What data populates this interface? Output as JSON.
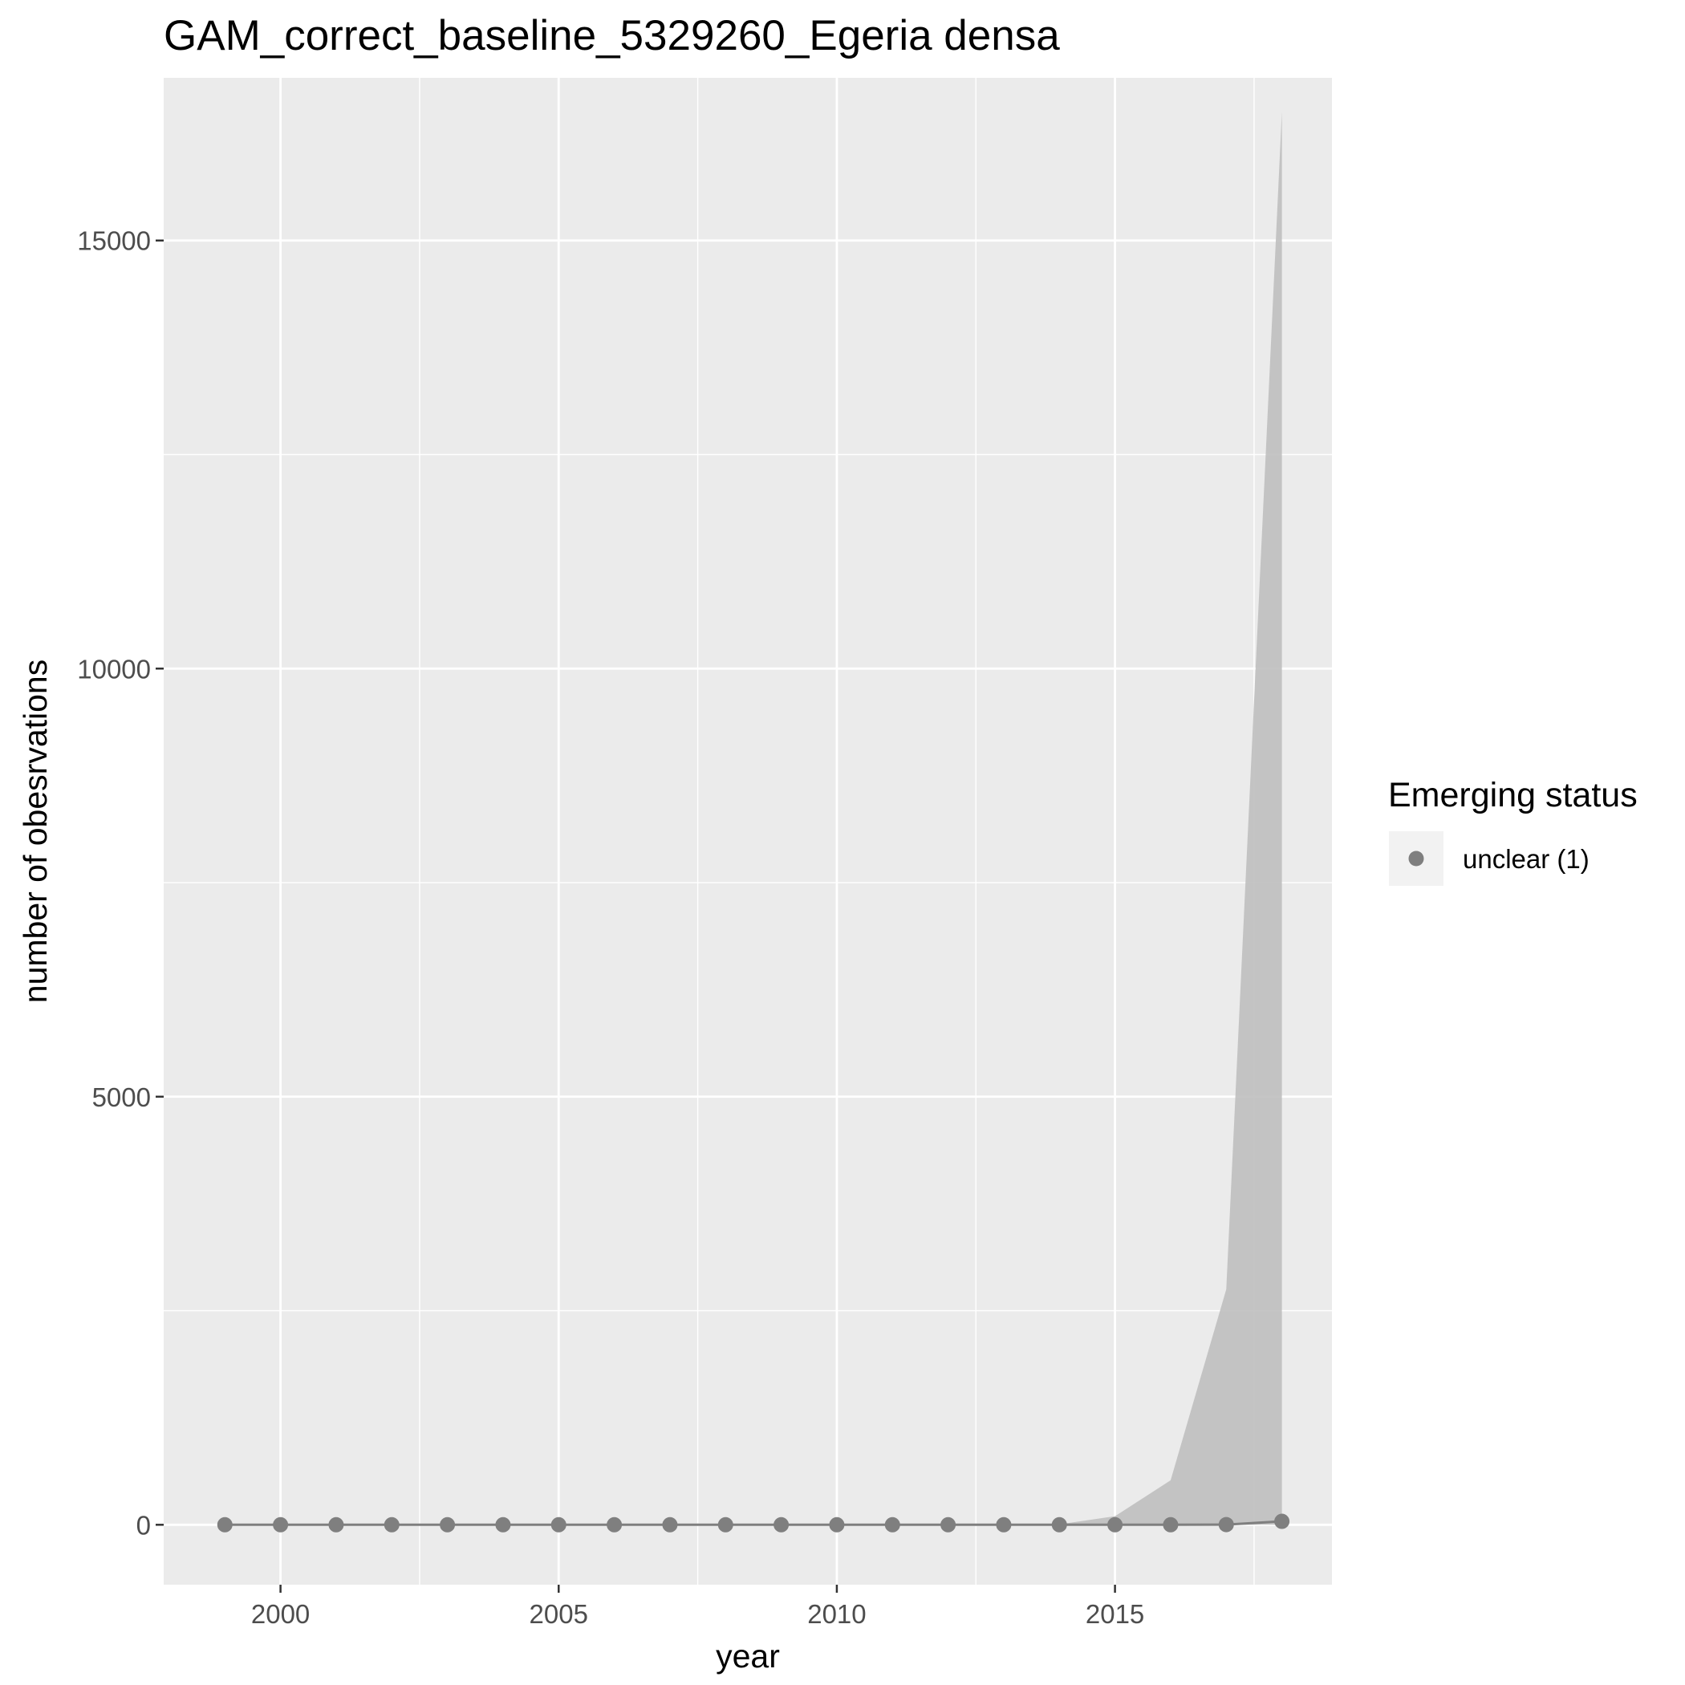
{
  "chart_data": {
    "type": "line",
    "title": "GAM_correct_baseline_5329260_Egeria densa",
    "xlabel": "year",
    "ylabel": "number of obesrvations",
    "x": [
      1999,
      2000,
      2001,
      2002,
      2003,
      2004,
      2005,
      2006,
      2007,
      2008,
      2009,
      2010,
      2011,
      2012,
      2013,
      2014,
      2015,
      2016,
      2017,
      2018
    ],
    "xlim": [
      1997.9,
      2018.9
    ],
    "ylim": [
      -700,
      16900
    ],
    "x_ticks": [
      2000,
      2005,
      2010,
      2015
    ],
    "y_ticks": [
      0,
      5000,
      10000,
      15000
    ],
    "grid": true,
    "series": [
      {
        "name": "unclear (1)",
        "color": "#7f7f7f",
        "values": [
          0,
          0,
          0,
          0,
          0,
          0,
          0,
          0,
          0,
          0,
          0,
          0,
          0,
          0,
          0,
          0,
          0,
          0,
          2,
          40
        ]
      }
    ],
    "confidence_band": {
      "color": "#bfbfbf",
      "lower": [
        0,
        0,
        0,
        0,
        0,
        0,
        0,
        0,
        0,
        0,
        0,
        0,
        0,
        0,
        0,
        0,
        0,
        0,
        0,
        0
      ],
      "upper": [
        0,
        0,
        0,
        0,
        0,
        0,
        0,
        0,
        0,
        0,
        0,
        0,
        0,
        0,
        0,
        5,
        100,
        520,
        2750,
        16500
      ]
    },
    "legend": {
      "title": "Emerging status",
      "position": "right",
      "entries": [
        "unclear (1)"
      ]
    },
    "panel_background": "#ebebeb",
    "gridline_color": "#ffffff"
  }
}
